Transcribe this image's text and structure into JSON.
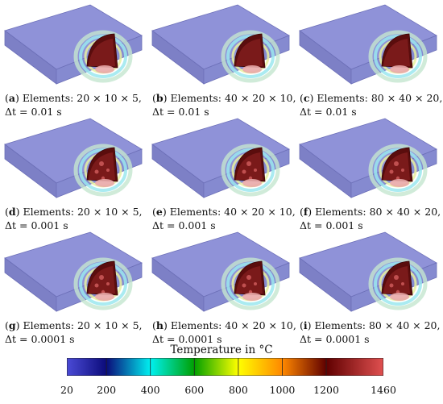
{
  "panels": [
    {
      "id": "a",
      "line1": "Elements: 20 × 10 × 5,",
      "line2": "Δt = 0.01 s"
    },
    {
      "id": "b",
      "line1": "Elements: 40 × 20 × 10,",
      "line2": "Δt = 0.01 s"
    },
    {
      "id": "c",
      "line1": "Elements: 80 × 40 × 20,",
      "line2": "Δt = 0.01 s"
    },
    {
      "id": "d",
      "line1": "Elements: 20 × 10 × 5,",
      "line2": "Δt = 0.001 s"
    },
    {
      "id": "e",
      "line1": "Elements: 40 × 20 × 10,",
      "line2": "Δt = 0.001 s"
    },
    {
      "id": "f",
      "line1": "Elements: 80 × 40 × 20,",
      "line2": "Δt = 0.001 s"
    },
    {
      "id": "g",
      "line1": "Elements: 20 × 10 × 5,",
      "line2": "Δt = 0.0001 s"
    },
    {
      "id": "h",
      "line1": "Elements: 40 × 20 × 10,",
      "line2": "Δt = 0.0001 s"
    },
    {
      "id": "i",
      "line1": "Elements: 80 × 40 × 20,",
      "line2": "Δt = 0.0001 s"
    }
  ],
  "colorbar": {
    "title": "Temperature in °C",
    "ticks": [
      "20",
      "200",
      "400",
      "600",
      "800",
      "1000",
      "1200",
      "1460"
    ],
    "tick_values": [
      20,
      200,
      400,
      600,
      800,
      1000,
      1200,
      1460
    ],
    "range": [
      20,
      1460
    ],
    "colors": [
      "#4b4bd6",
      "#0b0b7a",
      "#00f0f0",
      "#00a000",
      "#ffff00",
      "#ff8800",
      "#600000",
      "#e05050"
    ]
  },
  "colors": {
    "plate": "#8f92d8",
    "melt_pool": "#5a0d0d",
    "melt_highlight": "#c05050"
  }
}
